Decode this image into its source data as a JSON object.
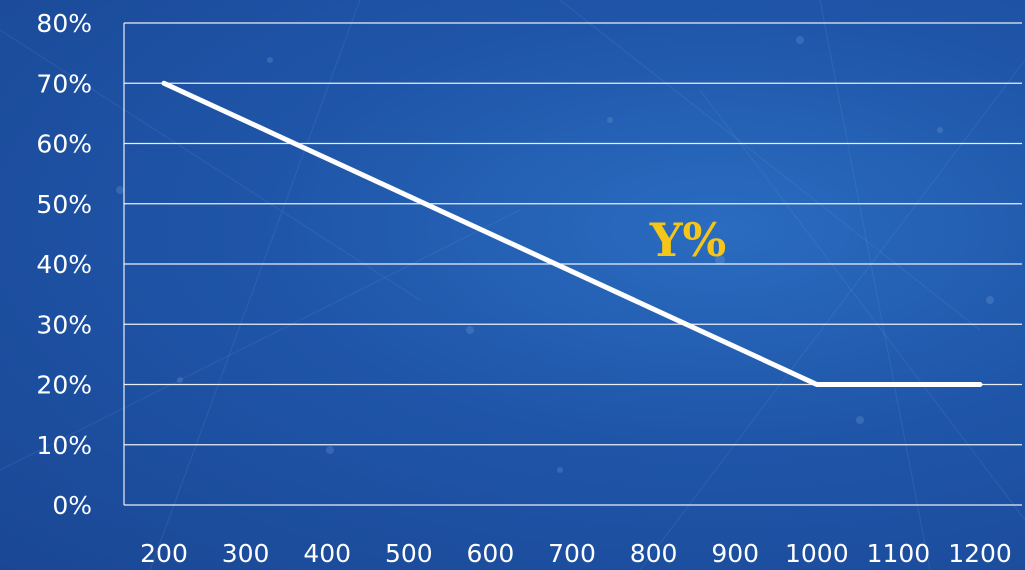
{
  "chart_data": {
    "type": "line",
    "x": [
      200,
      1000,
      1200
    ],
    "series": [
      {
        "values": [
          70,
          20,
          20
        ]
      }
    ],
    "xticks": [
      "200",
      "300",
      "400",
      "500",
      "600",
      "700",
      "800",
      "900",
      "1000",
      "1100",
      "1200"
    ],
    "yticks": [
      "0%",
      "10%",
      "20%",
      "30%",
      "40%",
      "50%",
      "60%",
      "70%",
      "80%"
    ],
    "xlim": [
      200,
      1200
    ],
    "ylim": [
      0,
      80
    ],
    "grid": "horizontal",
    "annotation": "Y%",
    "colors": {
      "line": "#ffffff",
      "grid": "#ffffff",
      "annotation": "#f5c518"
    }
  }
}
